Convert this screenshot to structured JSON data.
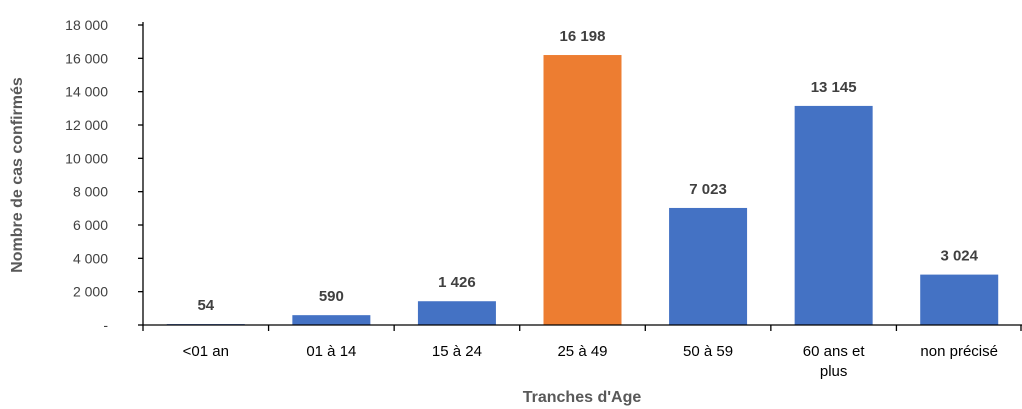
{
  "chart_data": {
    "type": "bar",
    "title": "",
    "xlabel": "Tranches d'Age",
    "ylabel": "Nombre de cas confirmés",
    "ylim": [
      0,
      18000
    ],
    "yticks": [
      {
        "value": 0,
        "label": "-"
      },
      {
        "value": 2000,
        "label": "2 000"
      },
      {
        "value": 4000,
        "label": "4 000"
      },
      {
        "value": 6000,
        "label": "6 000"
      },
      {
        "value": 8000,
        "label": "8 000"
      },
      {
        "value": 10000,
        "label": "10 000"
      },
      {
        "value": 12000,
        "label": "12 000"
      },
      {
        "value": 14000,
        "label": "14 000"
      },
      {
        "value": 16000,
        "label": "16 000"
      },
      {
        "value": 18000,
        "label": "18 000"
      }
    ],
    "categories": [
      [
        "<01 an"
      ],
      [
        "01 à 14"
      ],
      [
        "15 à  24"
      ],
      [
        "25 à 49"
      ],
      [
        "50 à 59"
      ],
      [
        "60 ans et",
        "plus"
      ],
      [
        "non précisé"
      ]
    ],
    "values": [
      54,
      590,
      1426,
      16198,
      7023,
      13145,
      3024
    ],
    "value_labels": [
      "54",
      "590",
      "1 426",
      "16 198",
      "7 023",
      "13 145",
      "3 024"
    ],
    "colors": [
      "#4472C4",
      "#4472C4",
      "#4472C4",
      "#ED7D31",
      "#4472C4",
      "#4472C4",
      "#4472C4"
    ],
    "grid": false,
    "legend": "none"
  }
}
